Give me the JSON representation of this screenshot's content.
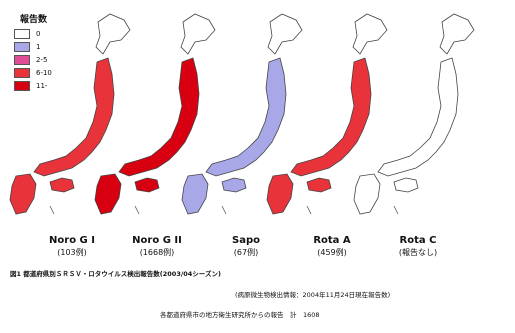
{
  "legend": {
    "title": "報告数",
    "items": [
      {
        "label": "0",
        "color": "#ffffff"
      },
      {
        "label": "1",
        "color": "#a8a8e8"
      },
      {
        "label": "2-5",
        "color": "#e04c95"
      },
      {
        "label": "6-10",
        "color": "#e8333a"
      },
      {
        "label": "11-",
        "color": "#d80010"
      }
    ]
  },
  "maps": [
    {
      "name": "Noro G I",
      "count": "(103例)",
      "fill": "#e8333a"
    },
    {
      "name": "Noro G II",
      "count": "(1668例)",
      "fill": "#d80010"
    },
    {
      "name": "Sapo",
      "count": "(67例)",
      "fill": "#a8a8e8"
    },
    {
      "name": "Rota A",
      "count": "(459例)",
      "fill": "#e8333a"
    },
    {
      "name": "Rota C",
      "count": "(報告なし)",
      "fill": "#ffffff"
    }
  ],
  "caption": "図1 都道府県別ＳＲＳＶ・ロタウイルス検出報告数(2003/04シーズン)",
  "note_source": "(病原微生物検出情報：2004年11月24日現在報告数)",
  "note_institute": "各都道府県市の地方衛生研究所からの報告　計　1608"
}
